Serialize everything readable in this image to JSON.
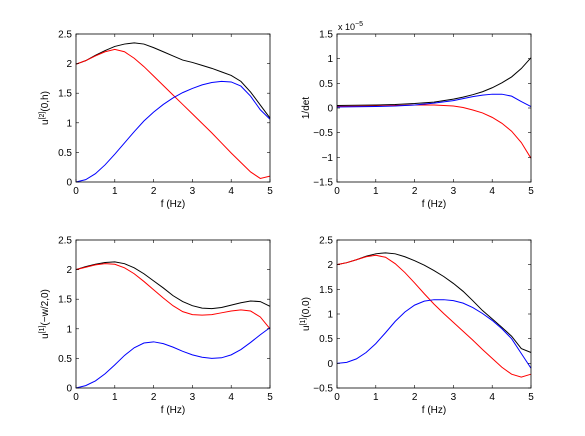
{
  "chart_data": [
    {
      "type": "line",
      "xlabel": "f (Hz)",
      "ylabel_main": "u",
      "ylabel_sup": "[2]",
      "ylabel_rest": "(0,h)",
      "xlim": [
        0,
        5
      ],
      "ylim": [
        0,
        2.5
      ],
      "xticks": [
        0,
        1,
        2,
        3,
        4,
        5
      ],
      "yticks": [
        0,
        0.5,
        1,
        1.5,
        2,
        2.5
      ],
      "ytick_labels": [
        "0",
        "0.5",
        "1",
        "1.5",
        "2",
        "2.5"
      ],
      "exponent_label": "",
      "series": [
        {
          "color": "#000000",
          "x": [
            0,
            0.25,
            0.5,
            0.75,
            1,
            1.25,
            1.5,
            1.75,
            2,
            2.25,
            2.5,
            2.75,
            3,
            3.25,
            3.5,
            3.75,
            4,
            4.25,
            4.5,
            4.75,
            5
          ],
          "y": [
            1.99,
            2.05,
            2.14,
            2.22,
            2.29,
            2.33,
            2.35,
            2.33,
            2.27,
            2.2,
            2.13,
            2.06,
            2.02,
            1.97,
            1.92,
            1.86,
            1.8,
            1.7,
            1.52,
            1.3,
            1.08
          ]
        },
        {
          "color": "#ff0000",
          "x": [
            0,
            0.25,
            0.5,
            0.75,
            1,
            1.25,
            1.5,
            1.75,
            2,
            2.25,
            2.5,
            2.75,
            3,
            3.25,
            3.5,
            3.75,
            4,
            4.25,
            4.5,
            4.75,
            5
          ],
          "y": [
            1.99,
            2.05,
            2.13,
            2.2,
            2.24,
            2.2,
            2.09,
            1.95,
            1.79,
            1.63,
            1.47,
            1.31,
            1.15,
            0.99,
            0.83,
            0.66,
            0.49,
            0.33,
            0.17,
            0.06,
            0.1
          ]
        },
        {
          "color": "#0000ff",
          "x": [
            0,
            0.25,
            0.5,
            0.75,
            1,
            1.25,
            1.5,
            1.75,
            2,
            2.25,
            2.5,
            2.75,
            3,
            3.25,
            3.5,
            3.75,
            4,
            4.25,
            4.5,
            4.75,
            5
          ],
          "y": [
            0.0,
            0.04,
            0.14,
            0.29,
            0.47,
            0.66,
            0.85,
            1.03,
            1.18,
            1.31,
            1.42,
            1.51,
            1.58,
            1.64,
            1.68,
            1.7,
            1.69,
            1.62,
            1.45,
            1.22,
            1.06
          ]
        }
      ]
    },
    {
      "type": "line",
      "xlabel": "f (Hz)",
      "ylabel_main": "1/det",
      "ylabel_sup": "",
      "ylabel_rest": "",
      "xlim": [
        0,
        5
      ],
      "ylim": [
        -1.5,
        1.5
      ],
      "xticks": [
        0,
        1,
        2,
        3,
        4,
        5
      ],
      "yticks": [
        -1.5,
        -1,
        -0.5,
        0,
        0.5,
        1,
        1.5
      ],
      "ytick_labels": [
        "−1.5",
        "−1",
        "−0.5",
        "0",
        "0.5",
        "1",
        "1.5"
      ],
      "exponent_label": "x 10",
      "exponent_power": "−5",
      "series": [
        {
          "color": "#000000",
          "x": [
            0,
            0.5,
            1,
            1.5,
            2,
            2.5,
            3,
            3.25,
            3.5,
            3.75,
            4,
            4.25,
            4.5,
            4.75,
            5
          ],
          "y": [
            0.05,
            0.055,
            0.06,
            0.07,
            0.09,
            0.12,
            0.18,
            0.22,
            0.27,
            0.33,
            0.41,
            0.51,
            0.63,
            0.8,
            1.02
          ]
        },
        {
          "color": "#ff0000",
          "x": [
            0,
            0.5,
            1,
            1.5,
            2,
            2.5,
            3,
            3.25,
            3.5,
            3.75,
            4,
            4.25,
            4.5,
            4.75,
            5
          ],
          "y": [
            0.03,
            0.035,
            0.04,
            0.05,
            0.06,
            0.06,
            0.04,
            0.01,
            -0.04,
            -0.1,
            -0.19,
            -0.31,
            -0.47,
            -0.7,
            -1.02
          ]
        },
        {
          "color": "#0000ff",
          "x": [
            0,
            0.5,
            1,
            1.5,
            2,
            2.5,
            3,
            3.25,
            3.5,
            3.75,
            4,
            4.25,
            4.5,
            4.75,
            5
          ],
          "y": [
            0.02,
            0.025,
            0.03,
            0.04,
            0.06,
            0.1,
            0.15,
            0.19,
            0.23,
            0.26,
            0.28,
            0.28,
            0.24,
            0.13,
            0.03
          ]
        }
      ]
    },
    {
      "type": "line",
      "xlabel": "f (Hz)",
      "ylabel_main": "u",
      "ylabel_sup": "[1]",
      "ylabel_rest": "(−w/2,0)",
      "xlim": [
        0,
        5
      ],
      "ylim": [
        0,
        2.5
      ],
      "xticks": [
        0,
        1,
        2,
        3,
        4,
        5
      ],
      "yticks": [
        0,
        0.5,
        1,
        1.5,
        2,
        2.5
      ],
      "ytick_labels": [
        "0",
        "0.5",
        "1",
        "1.5",
        "2",
        "2.5"
      ],
      "exponent_label": "",
      "series": [
        {
          "color": "#000000",
          "x": [
            0,
            0.25,
            0.5,
            0.75,
            1,
            1.25,
            1.5,
            1.75,
            2,
            2.25,
            2.5,
            2.75,
            3,
            3.25,
            3.5,
            3.75,
            4,
            4.25,
            4.5,
            4.75,
            5
          ],
          "y": [
            2.0,
            2.05,
            2.09,
            2.12,
            2.13,
            2.1,
            2.03,
            1.93,
            1.81,
            1.69,
            1.56,
            1.46,
            1.39,
            1.35,
            1.34,
            1.36,
            1.4,
            1.44,
            1.47,
            1.46,
            1.38
          ]
        },
        {
          "color": "#ff0000",
          "x": [
            0,
            0.25,
            0.5,
            0.75,
            1,
            1.25,
            1.5,
            1.75,
            2,
            2.25,
            2.5,
            2.75,
            3,
            3.25,
            3.5,
            3.75,
            4,
            4.25,
            4.5,
            4.75,
            5
          ],
          "y": [
            2.0,
            2.04,
            2.08,
            2.1,
            2.09,
            2.03,
            1.93,
            1.8,
            1.66,
            1.52,
            1.39,
            1.29,
            1.24,
            1.23,
            1.24,
            1.27,
            1.3,
            1.32,
            1.3,
            1.2,
            1.0
          ]
        },
        {
          "color": "#0000ff",
          "x": [
            0,
            0.25,
            0.5,
            0.75,
            1,
            1.25,
            1.5,
            1.75,
            2,
            2.25,
            2.5,
            2.75,
            3,
            3.25,
            3.5,
            3.75,
            4,
            4.25,
            4.5,
            4.75,
            5
          ],
          "y": [
            0.0,
            0.04,
            0.12,
            0.24,
            0.39,
            0.55,
            0.68,
            0.76,
            0.78,
            0.75,
            0.69,
            0.62,
            0.56,
            0.52,
            0.5,
            0.51,
            0.56,
            0.65,
            0.77,
            0.9,
            1.02
          ]
        }
      ]
    },
    {
      "type": "line",
      "xlabel": "f (Hz)",
      "ylabel_main": "u",
      "ylabel_sup": "[1]",
      "ylabel_rest": "(0,0)",
      "xlim": [
        0,
        5
      ],
      "ylim": [
        -0.5,
        2.5
      ],
      "xticks": [
        0,
        1,
        2,
        3,
        4,
        5
      ],
      "yticks": [
        -0.5,
        0,
        0.5,
        1,
        1.5,
        2,
        2.5
      ],
      "ytick_labels": [
        "−0.5",
        "0",
        "0.5",
        "1",
        "1.5",
        "2",
        "2.5"
      ],
      "exponent_label": "",
      "series": [
        {
          "color": "#000000",
          "x": [
            0,
            0.25,
            0.5,
            0.75,
            1,
            1.25,
            1.5,
            1.75,
            2,
            2.25,
            2.5,
            2.75,
            3,
            3.25,
            3.5,
            3.75,
            4,
            4.25,
            4.5,
            4.75,
            5
          ],
          "y": [
            2.0,
            2.04,
            2.1,
            2.17,
            2.22,
            2.24,
            2.22,
            2.16,
            2.08,
            1.99,
            1.88,
            1.76,
            1.62,
            1.46,
            1.27,
            1.07,
            0.9,
            0.73,
            0.55,
            0.3,
            0.22
          ]
        },
        {
          "color": "#ff0000",
          "x": [
            0,
            0.25,
            0.5,
            0.75,
            1,
            1.25,
            1.5,
            1.75,
            2,
            2.25,
            2.5,
            2.75,
            3,
            3.25,
            3.5,
            3.75,
            4,
            4.25,
            4.5,
            4.75,
            5
          ],
          "y": [
            2.0,
            2.04,
            2.1,
            2.16,
            2.19,
            2.15,
            2.02,
            1.84,
            1.63,
            1.41,
            1.2,
            1.01,
            0.83,
            0.65,
            0.47,
            0.28,
            0.1,
            -0.08,
            -0.22,
            -0.28,
            -0.22
          ]
        },
        {
          "color": "#0000ff",
          "x": [
            0,
            0.25,
            0.5,
            0.75,
            1,
            1.25,
            1.5,
            1.75,
            2,
            2.25,
            2.5,
            2.75,
            3,
            3.25,
            3.5,
            3.75,
            4,
            4.25,
            4.5,
            4.75,
            5
          ],
          "y": [
            0.0,
            0.02,
            0.09,
            0.22,
            0.4,
            0.62,
            0.85,
            1.04,
            1.18,
            1.26,
            1.29,
            1.29,
            1.27,
            1.22,
            1.13,
            1.01,
            0.87,
            0.7,
            0.5,
            0.2,
            -0.1
          ]
        }
      ]
    }
  ]
}
